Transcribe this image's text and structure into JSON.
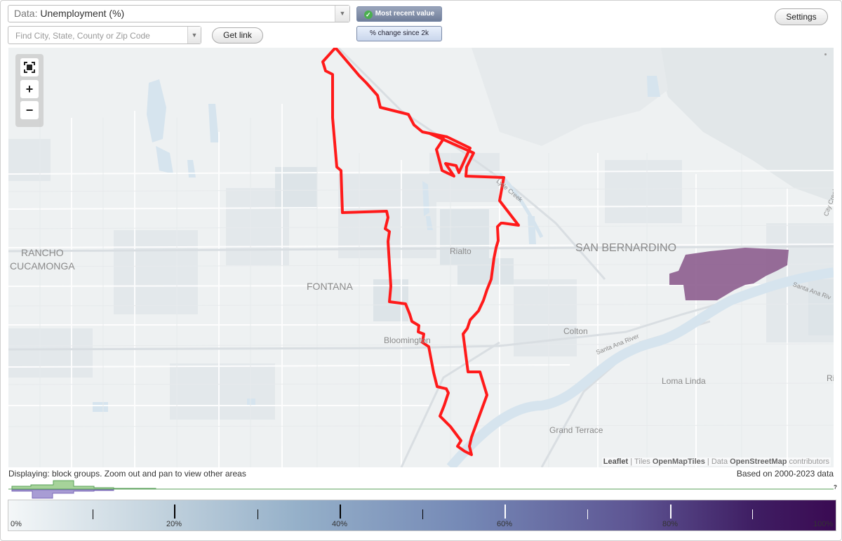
{
  "header": {
    "data_select_label": "Data:",
    "data_select_value": "Unemployment (%)",
    "search_placeholder": "Find City, State, County or Zip Code",
    "get_link_label": "Get link",
    "settings_label": "Settings",
    "mode_active_label": "Most recent value",
    "mode_inactive_label": "% change since 2k"
  },
  "map": {
    "zoom_controls": {
      "fit": "",
      "zoom_in": "+",
      "zoom_out": "−"
    },
    "places": [
      {
        "name": "RANCHO",
        "type": "city"
      },
      {
        "name": "CUCAMONGA",
        "type": "city"
      },
      {
        "name": "FONTANA",
        "type": "city"
      },
      {
        "name": "SAN BERNARDINO",
        "type": "city"
      },
      {
        "name": "Rialto",
        "type": "town"
      },
      {
        "name": "Bloomington",
        "type": "town"
      },
      {
        "name": "Colton",
        "type": "town"
      },
      {
        "name": "Loma Linda",
        "type": "town"
      },
      {
        "name": "Grand Terrace",
        "type": "town"
      },
      {
        "name": "Lytle Creek",
        "type": "water"
      },
      {
        "name": "Santa Ana River",
        "type": "water"
      },
      {
        "name": "Santa Ana Riv",
        "type": "road"
      },
      {
        "name": "City Creek",
        "type": "road"
      },
      {
        "name": "Ri",
        "type": "town"
      }
    ],
    "attribution": {
      "leaflet": "Leaflet",
      "tiles_prefix": "Tiles",
      "tiles_source": "OpenMapTiles",
      "data_prefix": "Data",
      "data_source": "OpenStreetMap",
      "data_suffix": "contributors"
    },
    "colors": {
      "boundary": "#ff0000",
      "highlight_area": "#8c5d8e",
      "water": "#dae8f0"
    }
  },
  "footer": {
    "displaying_text": "Displaying: block groups. Zoom out and pan to view other areas",
    "based_on_text": "Based on 2000-2023 data",
    "histogram_unknown_label": "?",
    "legend": {
      "ticks": [
        "0%",
        "20%",
        "40%",
        "60%",
        "80%",
        "100%"
      ],
      "color_start": "#f4f7f8",
      "color_end": "#3a0a52"
    }
  }
}
